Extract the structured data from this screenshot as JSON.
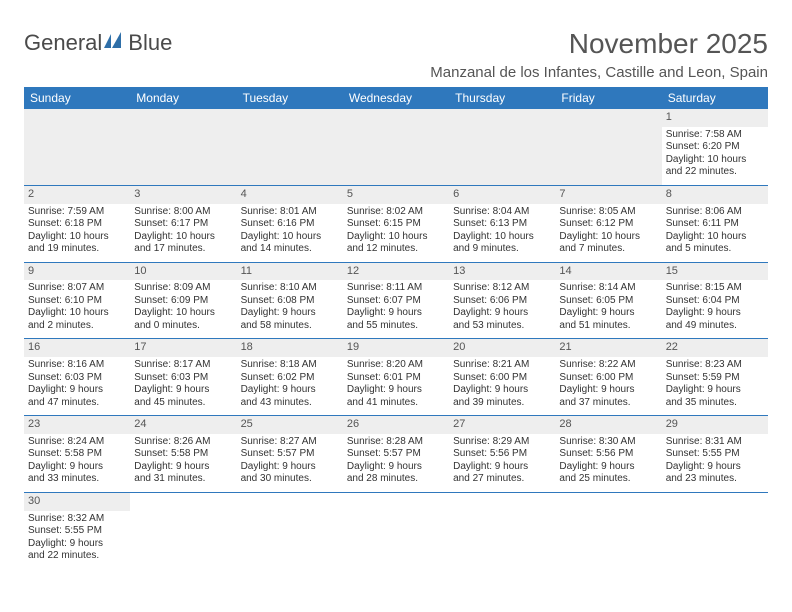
{
  "logo": {
    "word1": "General",
    "word2": "Blue"
  },
  "title": "November 2025",
  "location": "Manzanal de los Infantes, Castille and Leon, Spain",
  "colors": {
    "header_bg": "#2f78bd",
    "header_text": "#ffffff",
    "daynum_bg": "#eeeeee",
    "border": "#2f78bd",
    "text": "#333333",
    "title_text": "#555555",
    "logo_gray": "#4a4a4a",
    "logo_blue": "#2f6fa8"
  },
  "weekdays": [
    "Sunday",
    "Monday",
    "Tuesday",
    "Wednesday",
    "Thursday",
    "Friday",
    "Saturday"
  ],
  "weeks": [
    [
      null,
      null,
      null,
      null,
      null,
      null,
      {
        "n": "1",
        "sr": "Sunrise: 7:58 AM",
        "ss": "Sunset: 6:20 PM",
        "d1": "Daylight: 10 hours",
        "d2": "and 22 minutes."
      }
    ],
    [
      {
        "n": "2",
        "sr": "Sunrise: 7:59 AM",
        "ss": "Sunset: 6:18 PM",
        "d1": "Daylight: 10 hours",
        "d2": "and 19 minutes."
      },
      {
        "n": "3",
        "sr": "Sunrise: 8:00 AM",
        "ss": "Sunset: 6:17 PM",
        "d1": "Daylight: 10 hours",
        "d2": "and 17 minutes."
      },
      {
        "n": "4",
        "sr": "Sunrise: 8:01 AM",
        "ss": "Sunset: 6:16 PM",
        "d1": "Daylight: 10 hours",
        "d2": "and 14 minutes."
      },
      {
        "n": "5",
        "sr": "Sunrise: 8:02 AM",
        "ss": "Sunset: 6:15 PM",
        "d1": "Daylight: 10 hours",
        "d2": "and 12 minutes."
      },
      {
        "n": "6",
        "sr": "Sunrise: 8:04 AM",
        "ss": "Sunset: 6:13 PM",
        "d1": "Daylight: 10 hours",
        "d2": "and 9 minutes."
      },
      {
        "n": "7",
        "sr": "Sunrise: 8:05 AM",
        "ss": "Sunset: 6:12 PM",
        "d1": "Daylight: 10 hours",
        "d2": "and 7 minutes."
      },
      {
        "n": "8",
        "sr": "Sunrise: 8:06 AM",
        "ss": "Sunset: 6:11 PM",
        "d1": "Daylight: 10 hours",
        "d2": "and 5 minutes."
      }
    ],
    [
      {
        "n": "9",
        "sr": "Sunrise: 8:07 AM",
        "ss": "Sunset: 6:10 PM",
        "d1": "Daylight: 10 hours",
        "d2": "and 2 minutes."
      },
      {
        "n": "10",
        "sr": "Sunrise: 8:09 AM",
        "ss": "Sunset: 6:09 PM",
        "d1": "Daylight: 10 hours",
        "d2": "and 0 minutes."
      },
      {
        "n": "11",
        "sr": "Sunrise: 8:10 AM",
        "ss": "Sunset: 6:08 PM",
        "d1": "Daylight: 9 hours",
        "d2": "and 58 minutes."
      },
      {
        "n": "12",
        "sr": "Sunrise: 8:11 AM",
        "ss": "Sunset: 6:07 PM",
        "d1": "Daylight: 9 hours",
        "d2": "and 55 minutes."
      },
      {
        "n": "13",
        "sr": "Sunrise: 8:12 AM",
        "ss": "Sunset: 6:06 PM",
        "d1": "Daylight: 9 hours",
        "d2": "and 53 minutes."
      },
      {
        "n": "14",
        "sr": "Sunrise: 8:14 AM",
        "ss": "Sunset: 6:05 PM",
        "d1": "Daylight: 9 hours",
        "d2": "and 51 minutes."
      },
      {
        "n": "15",
        "sr": "Sunrise: 8:15 AM",
        "ss": "Sunset: 6:04 PM",
        "d1": "Daylight: 9 hours",
        "d2": "and 49 minutes."
      }
    ],
    [
      {
        "n": "16",
        "sr": "Sunrise: 8:16 AM",
        "ss": "Sunset: 6:03 PM",
        "d1": "Daylight: 9 hours",
        "d2": "and 47 minutes."
      },
      {
        "n": "17",
        "sr": "Sunrise: 8:17 AM",
        "ss": "Sunset: 6:03 PM",
        "d1": "Daylight: 9 hours",
        "d2": "and 45 minutes."
      },
      {
        "n": "18",
        "sr": "Sunrise: 8:18 AM",
        "ss": "Sunset: 6:02 PM",
        "d1": "Daylight: 9 hours",
        "d2": "and 43 minutes."
      },
      {
        "n": "19",
        "sr": "Sunrise: 8:20 AM",
        "ss": "Sunset: 6:01 PM",
        "d1": "Daylight: 9 hours",
        "d2": "and 41 minutes."
      },
      {
        "n": "20",
        "sr": "Sunrise: 8:21 AM",
        "ss": "Sunset: 6:00 PM",
        "d1": "Daylight: 9 hours",
        "d2": "and 39 minutes."
      },
      {
        "n": "21",
        "sr": "Sunrise: 8:22 AM",
        "ss": "Sunset: 6:00 PM",
        "d1": "Daylight: 9 hours",
        "d2": "and 37 minutes."
      },
      {
        "n": "22",
        "sr": "Sunrise: 8:23 AM",
        "ss": "Sunset: 5:59 PM",
        "d1": "Daylight: 9 hours",
        "d2": "and 35 minutes."
      }
    ],
    [
      {
        "n": "23",
        "sr": "Sunrise: 8:24 AM",
        "ss": "Sunset: 5:58 PM",
        "d1": "Daylight: 9 hours",
        "d2": "and 33 minutes."
      },
      {
        "n": "24",
        "sr": "Sunrise: 8:26 AM",
        "ss": "Sunset: 5:58 PM",
        "d1": "Daylight: 9 hours",
        "d2": "and 31 minutes."
      },
      {
        "n": "25",
        "sr": "Sunrise: 8:27 AM",
        "ss": "Sunset: 5:57 PM",
        "d1": "Daylight: 9 hours",
        "d2": "and 30 minutes."
      },
      {
        "n": "26",
        "sr": "Sunrise: 8:28 AM",
        "ss": "Sunset: 5:57 PM",
        "d1": "Daylight: 9 hours",
        "d2": "and 28 minutes."
      },
      {
        "n": "27",
        "sr": "Sunrise: 8:29 AM",
        "ss": "Sunset: 5:56 PM",
        "d1": "Daylight: 9 hours",
        "d2": "and 27 minutes."
      },
      {
        "n": "28",
        "sr": "Sunrise: 8:30 AM",
        "ss": "Sunset: 5:56 PM",
        "d1": "Daylight: 9 hours",
        "d2": "and 25 minutes."
      },
      {
        "n": "29",
        "sr": "Sunrise: 8:31 AM",
        "ss": "Sunset: 5:55 PM",
        "d1": "Daylight: 9 hours",
        "d2": "and 23 minutes."
      }
    ],
    [
      {
        "n": "30",
        "sr": "Sunrise: 8:32 AM",
        "ss": "Sunset: 5:55 PM",
        "d1": "Daylight: 9 hours",
        "d2": "and 22 minutes."
      },
      null,
      null,
      null,
      null,
      null,
      null
    ]
  ]
}
